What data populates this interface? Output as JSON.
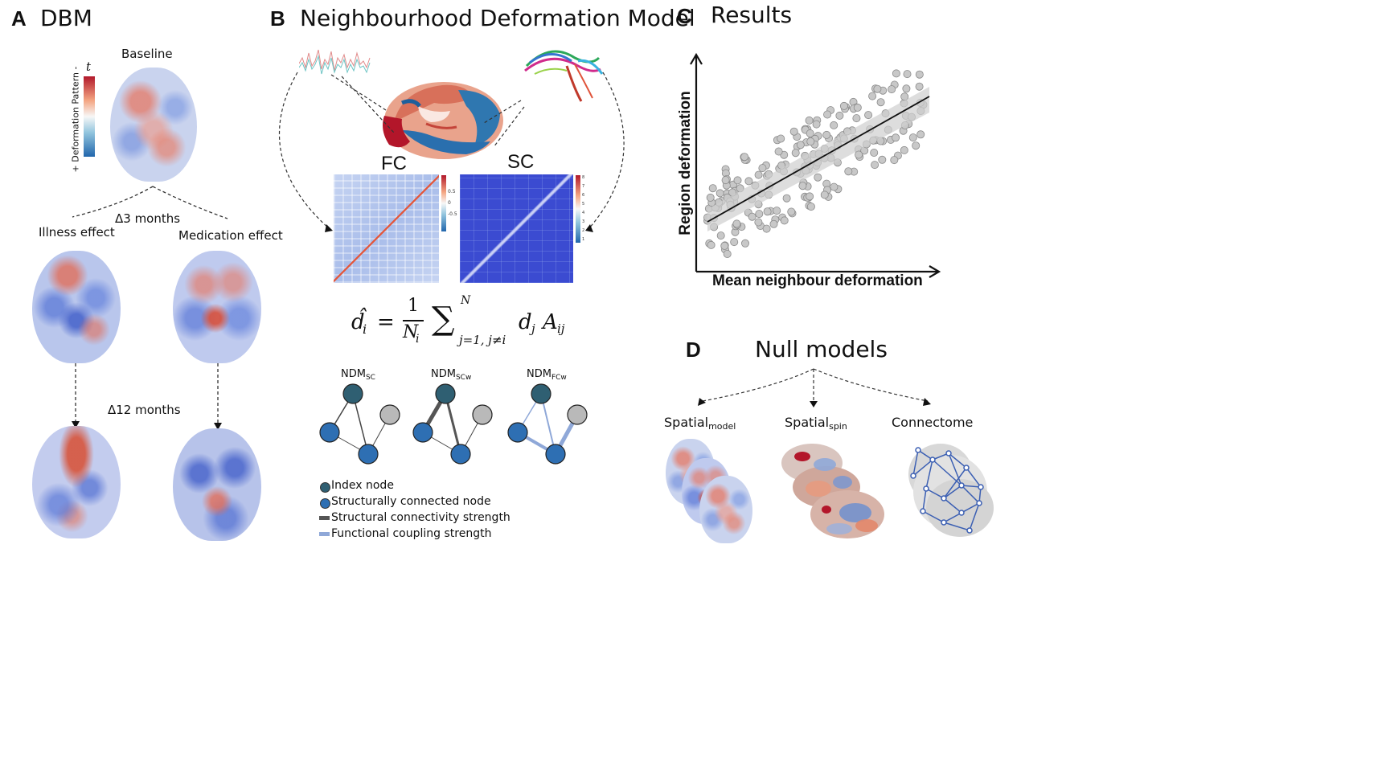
{
  "panel_a": {
    "letter": "A",
    "title": "DBM",
    "baseline": "Baseline",
    "colorbar_symbol": "t",
    "colorbar_label": "+ Deformation Pattern -",
    "delta3": "Δ3 months",
    "illness": "Illness effect",
    "medication": "Medication effect",
    "delta12": "Δ12 months"
  },
  "panel_b": {
    "letter": "B",
    "title": "Neighbourhood Deformation Model",
    "fc": "FC",
    "sc": "SC",
    "fc_ticks": [
      "0.5",
      "0",
      "-0.5"
    ],
    "sc_ticks": [
      "8",
      "7",
      "6",
      "5",
      "4",
      "3",
      "2",
      "1"
    ],
    "formula": {
      "lhs": "d̂",
      "lhs_sub": "i",
      "eq": "=",
      "num": "1",
      "den": "N",
      "den_sub": "i",
      "sum": "∑",
      "sum_top": "N",
      "sum_bottom": "j=1, j≠i",
      "term1": "d",
      "term1_sub": "j",
      "term2": "A",
      "term2_sub": "ij"
    },
    "ndm": [
      {
        "name": "NDM",
        "sub": "SC"
      },
      {
        "name": "NDM",
        "sub": "SCw"
      },
      {
        "name": "NDM",
        "sub": "FCw"
      }
    ],
    "legend": [
      {
        "label": "Index node",
        "color": "#2f5f72"
      },
      {
        "label": "Structurally connected node",
        "color": "#2e6fb3"
      },
      {
        "label": "Structural connectivity strength",
        "color": "#555555"
      },
      {
        "label": "Functional coupling strength",
        "color": "#8fa8d8"
      }
    ]
  },
  "panel_c": {
    "letter": "C",
    "title": "Results",
    "xlabel": "Mean neighbour deformation",
    "ylabel": "Region deformation"
  },
  "panel_d": {
    "letter": "D",
    "title": "Null models",
    "models": [
      {
        "name": "Spatial",
        "sub": "model"
      },
      {
        "name": "Spatial",
        "sub": "spin"
      },
      {
        "name": "Connectome",
        "sub": ""
      }
    ]
  },
  "colors": {
    "red": "#c0392b",
    "blue": "#3b4bd1",
    "index_node": "#2f5f72",
    "connected_node": "#2e6fb3",
    "gray_node": "#b9b9b9",
    "scatter_point": "#c8c8c8",
    "fit_line": "#111111"
  }
}
